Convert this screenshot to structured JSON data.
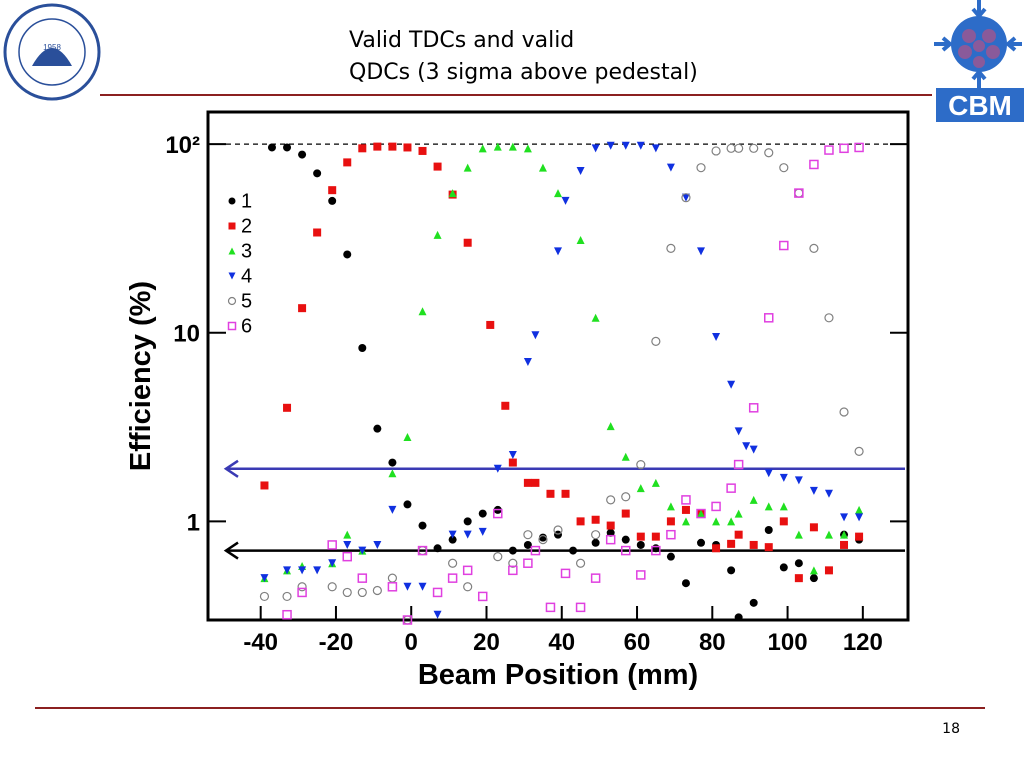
{
  "title_lines": [
    "Valid TDCs and valid",
    "QDCs (3 sigma above pedestal)"
  ],
  "page_number": "18",
  "logo_left_text": "1958",
  "logo_right_text": "CBM",
  "chart_data": {
    "type": "scatter",
    "xlabel": "Beam Position (mm)",
    "ylabel": "Efficiency (%)",
    "xlim": [
      -54,
      132
    ],
    "xticks": [
      -40,
      -20,
      0,
      20,
      40,
      60,
      80,
      100,
      120
    ],
    "ylim": [
      0.3,
      148
    ],
    "yticks": [
      1,
      10,
      {
        "value": 100,
        "label": "10²"
      }
    ],
    "log_y": true,
    "legend": "upper left",
    "reference_lines": [
      {
        "value": 100,
        "style": "dashed",
        "color": "#000000"
      },
      {
        "value": 1.9,
        "style": "arrow",
        "color": "#3a3ab4"
      },
      {
        "value": 0.7,
        "style": "arrow",
        "color": "#000000"
      }
    ],
    "series": [
      {
        "name": "1",
        "marker": "circle",
        "color": "#000000",
        "x": [
          -37,
          -33,
          -29,
          -25,
          -21,
          -17,
          -13,
          -9,
          -5,
          -1,
          3,
          7,
          11,
          15,
          19,
          23,
          27,
          31,
          35,
          39,
          43,
          49,
          53,
          57,
          61,
          65,
          69,
          73,
          77,
          81,
          85,
          87,
          91,
          95,
          99,
          103,
          107,
          115,
          119
        ],
        "values": [
          96,
          96,
          88,
          70,
          50,
          26,
          8.3,
          3.1,
          2.05,
          1.23,
          0.95,
          0.72,
          0.8,
          1.0,
          1.1,
          1.15,
          0.7,
          0.75,
          0.82,
          0.85,
          0.7,
          0.77,
          0.87,
          0.8,
          0.75,
          0.72,
          0.65,
          0.47,
          0.77,
          0.75,
          0.55,
          0.31,
          0.37,
          0.9,
          0.57,
          0.6,
          0.5,
          0.85,
          0.8
        ]
      },
      {
        "name": "2",
        "marker": "square",
        "color": "#e81010",
        "x": [
          -39,
          -33,
          -29,
          -25,
          -21,
          -17,
          -13,
          -9,
          -5,
          -1,
          3,
          7,
          11,
          15,
          21,
          25,
          27,
          31,
          33,
          37,
          41,
          45,
          49,
          53,
          57,
          61,
          65,
          69,
          73,
          77,
          81,
          85,
          87,
          91,
          95,
          99,
          103,
          107,
          111,
          115,
          119
        ],
        "values": [
          1.55,
          4.0,
          13.5,
          34,
          57,
          80,
          95,
          97,
          97,
          96,
          92,
          76,
          54,
          30,
          11,
          4.1,
          2.05,
          1.6,
          1.6,
          1.4,
          1.4,
          1.0,
          1.02,
          0.95,
          1.1,
          0.83,
          0.83,
          1.0,
          1.15,
          1.1,
          0.72,
          0.76,
          0.85,
          0.75,
          0.73,
          1.0,
          0.5,
          0.93,
          0.55,
          0.75,
          0.83
        ]
      },
      {
        "name": "3",
        "marker": "triangle-up",
        "color": "#20e020",
        "x": [
          -39,
          -33,
          -29,
          -21,
          -17,
          -13,
          -5,
          -1,
          3,
          7,
          11,
          15,
          19,
          23,
          27,
          31,
          35,
          39,
          45,
          49,
          53,
          57,
          61,
          65,
          69,
          73,
          77,
          81,
          85,
          87,
          91,
          95,
          99,
          103,
          107,
          111,
          115,
          119
        ],
        "values": [
          0.5,
          0.55,
          0.58,
          0.6,
          0.85,
          0.7,
          1.8,
          2.8,
          13,
          33,
          55,
          75,
          95,
          97,
          97,
          95,
          75,
          55,
          31,
          12,
          3.2,
          2.2,
          1.5,
          1.6,
          1.2,
          1.0,
          1.1,
          1.0,
          1.0,
          1.1,
          1.3,
          1.2,
          1.2,
          0.85,
          0.55,
          0.85,
          0.85,
          1.15
        ]
      },
      {
        "name": "4",
        "marker": "triangle-down",
        "color": "#1030e0",
        "x": [
          -39,
          -33,
          -29,
          -25,
          -21,
          -17,
          -13,
          -9,
          -5,
          -1,
          3,
          7,
          11,
          15,
          19,
          23,
          27,
          31,
          33,
          39,
          41,
          45,
          49,
          53,
          57,
          61,
          65,
          69,
          73,
          77,
          81,
          85,
          87,
          89,
          91,
          95,
          99,
          103,
          107,
          111,
          115,
          119
        ],
        "values": [
          0.5,
          0.55,
          0.55,
          0.55,
          0.6,
          0.75,
          0.7,
          0.75,
          1.15,
          0.45,
          0.45,
          0.32,
          0.85,
          0.85,
          0.88,
          1.9,
          2.25,
          7,
          9.7,
          27,
          50,
          72,
          95,
          98,
          98,
          98,
          95,
          75,
          52,
          27,
          9.5,
          5.3,
          3.0,
          2.5,
          2.4,
          1.8,
          1.7,
          1.65,
          1.45,
          1.4,
          1.05,
          1.05
        ]
      },
      {
        "name": "5",
        "marker": "open-circle",
        "color": "#808080",
        "x": [
          -39,
          -33,
          -29,
          -21,
          -17,
          -13,
          -9,
          -5,
          -1,
          3,
          11,
          15,
          23,
          27,
          31,
          35,
          39,
          45,
          49,
          53,
          57,
          61,
          65,
          69,
          73,
          77,
          81,
          85,
          87,
          91,
          95,
          99,
          103,
          107,
          111,
          115,
          119
        ],
        "values": [
          0.4,
          0.4,
          0.45,
          0.45,
          0.42,
          0.42,
          0.43,
          0.5,
          0.3,
          0.7,
          0.6,
          0.45,
          0.65,
          0.6,
          0.85,
          0.8,
          0.9,
          0.6,
          0.85,
          1.3,
          1.35,
          2.0,
          9,
          28,
          52,
          75,
          92,
          95,
          95,
          95,
          90,
          75,
          55,
          28,
          12,
          3.8,
          2.35
        ]
      },
      {
        "name": "6",
        "marker": "open-square",
        "color": "#e040e0",
        "x": [
          -33,
          -29,
          -21,
          -17,
          -13,
          -5,
          -1,
          3,
          7,
          11,
          15,
          19,
          23,
          27,
          31,
          33,
          37,
          41,
          45,
          49,
          53,
          57,
          61,
          65,
          69,
          73,
          77,
          81,
          85,
          87,
          91,
          95,
          99,
          103,
          107,
          111,
          115,
          119
        ],
        "values": [
          0.32,
          0.42,
          0.75,
          0.65,
          0.5,
          0.45,
          0.3,
          0.7,
          0.42,
          0.5,
          0.55,
          0.4,
          1.1,
          0.55,
          0.6,
          0.7,
          0.35,
          0.53,
          0.35,
          0.5,
          0.8,
          0.7,
          0.52,
          0.7,
          0.85,
          1.3,
          1.1,
          1.2,
          1.5,
          2.0,
          4.0,
          12,
          29,
          55,
          78,
          93,
          95,
          96
        ]
      }
    ]
  }
}
